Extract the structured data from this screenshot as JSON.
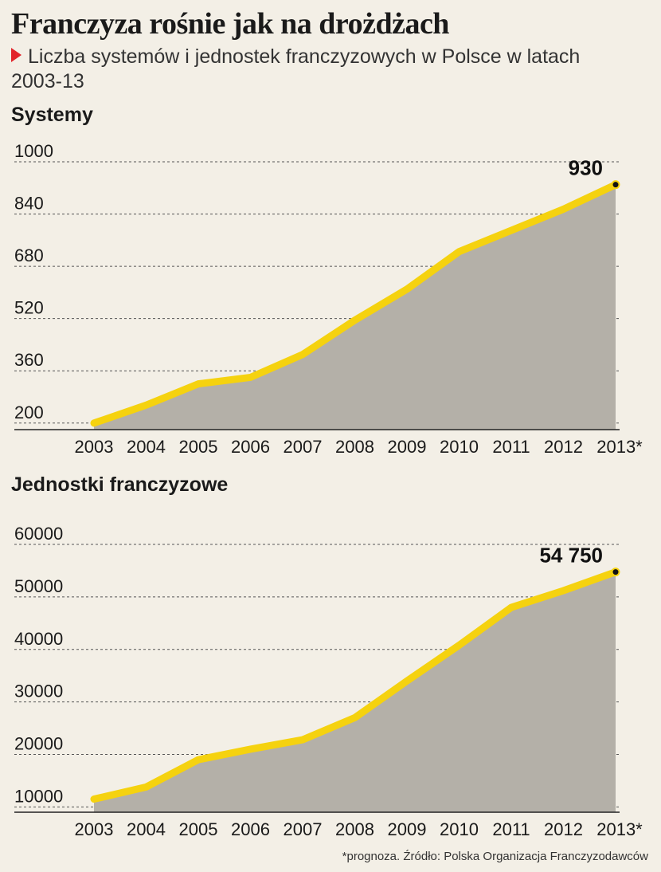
{
  "header": {
    "title": "Franczyza rośnie jak na drożdżach",
    "subtitle": "Liczba systemów i jednostek franczyzowych w Polsce w latach 2003-13"
  },
  "footnote": "*prognoza. Źródło: Polska Organizacja Franczyzodawców",
  "colors": {
    "line": "#f5d20f",
    "area": "#b4b0a8",
    "background": "#f3efe6",
    "marker": "#e2252b"
  },
  "chart_data": [
    {
      "type": "area",
      "title": "Systemy",
      "categories": [
        "2003",
        "2004",
        "2005",
        "2006",
        "2007",
        "2008",
        "2009",
        "2010",
        "2011",
        "2012",
        "2013*"
      ],
      "series": [
        {
          "values": [
            200,
            255,
            320,
            340,
            410,
            515,
            610,
            725,
            790,
            855,
            930
          ]
        }
      ],
      "ylim": [
        180,
        1000
      ],
      "yticks": [
        200,
        360,
        520,
        680,
        840,
        1000
      ],
      "ytick_labels": [
        "200",
        "360",
        "520",
        "680",
        "840",
        "1000"
      ],
      "last_value_label": "930",
      "grid": true
    },
    {
      "type": "area",
      "title": "Jednostki franczyzowe",
      "categories": [
        "2003",
        "2004",
        "2005",
        "2006",
        "2007",
        "2008",
        "2009",
        "2010",
        "2011",
        "2012",
        "2013*"
      ],
      "series": [
        {
          "values": [
            11500,
            13800,
            19000,
            21000,
            22800,
            27000,
            34000,
            40800,
            48000,
            51200,
            54750
          ]
        }
      ],
      "ylim": [
        9000,
        60000
      ],
      "yticks": [
        10000,
        20000,
        30000,
        40000,
        50000,
        60000
      ],
      "ytick_labels": [
        "10000",
        "20000",
        "30000",
        "40000",
        "50000",
        "60000"
      ],
      "last_value_label": "54 750",
      "grid": true
    }
  ]
}
